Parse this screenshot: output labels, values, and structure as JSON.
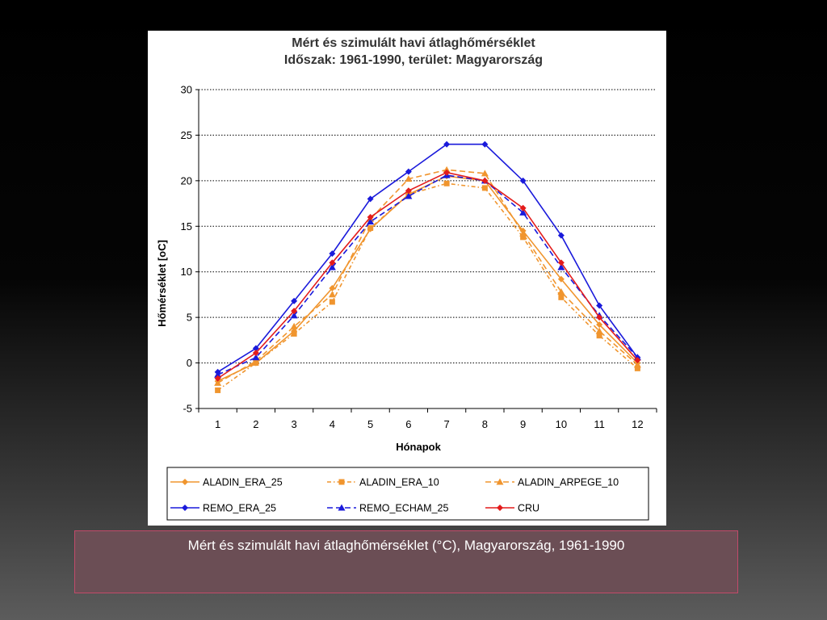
{
  "chart_data": {
    "type": "line",
    "title": "Mért és szimulált havi átlaghőmérséklet",
    "subtitle": "Időszak: 1961-1990, terület: Magyarország",
    "xlabel": "Hónapok",
    "ylabel": "Hőmérséklet [oC]",
    "categories": [
      "1",
      "2",
      "3",
      "4",
      "5",
      "6",
      "7",
      "8",
      "9",
      "10",
      "11",
      "12"
    ],
    "ylim": [
      -5,
      30
    ],
    "yticks": [
      "-5",
      "0",
      "5",
      "10",
      "15",
      "20",
      "25",
      "30"
    ],
    "grid": "horizontal-dotted",
    "legend_position": "bottom",
    "series": [
      {
        "name": "ALADIN_ERA_25",
        "color": "#f0952e",
        "dash": "solid",
        "marker": "diamond",
        "values": [
          -2.0,
          0.0,
          3.5,
          8.2,
          14.7,
          18.5,
          20.5,
          20.0,
          14.5,
          9.2,
          4.2,
          0.0
        ]
      },
      {
        "name": "ALADIN_ERA_10",
        "color": "#f0952e",
        "dash": "dashdot",
        "marker": "square",
        "values": [
          -3.0,
          0.0,
          3.2,
          6.7,
          14.8,
          18.5,
          19.7,
          19.2,
          13.8,
          7.2,
          3.0,
          -0.6
        ]
      },
      {
        "name": "ALADIN_ARPEGE_10",
        "color": "#f0952e",
        "dash": "longdash",
        "marker": "triangle",
        "values": [
          -2.2,
          0.2,
          4.0,
          7.5,
          15.8,
          20.2,
          21.2,
          20.8,
          14.2,
          7.8,
          3.5,
          -0.2
        ]
      },
      {
        "name": "REMO_ERA_25",
        "color": "#1a1adb",
        "dash": "solid",
        "marker": "diamond",
        "values": [
          -1.0,
          1.6,
          6.8,
          12.0,
          18.0,
          21.0,
          24.0,
          24.0,
          20.0,
          14.0,
          6.3,
          0.6
        ]
      },
      {
        "name": "REMO_ECHAM_25",
        "color": "#1a1adb",
        "dash": "longdash",
        "marker": "triangle",
        "values": [
          -1.3,
          0.6,
          5.2,
          10.5,
          15.5,
          18.3,
          20.6,
          20.0,
          16.5,
          10.5,
          5.2,
          0.6
        ]
      },
      {
        "name": "CRU",
        "color": "#e31b1b",
        "dash": "solid",
        "marker": "diamond",
        "values": [
          -1.7,
          1.1,
          5.7,
          11.0,
          16.0,
          18.9,
          20.9,
          20.0,
          17.0,
          11.0,
          5.0,
          0.3
        ]
      }
    ]
  },
  "caption": "Mért és szimulált havi átlaghőmérséklet (°C), Magyarország, 1961-1990"
}
